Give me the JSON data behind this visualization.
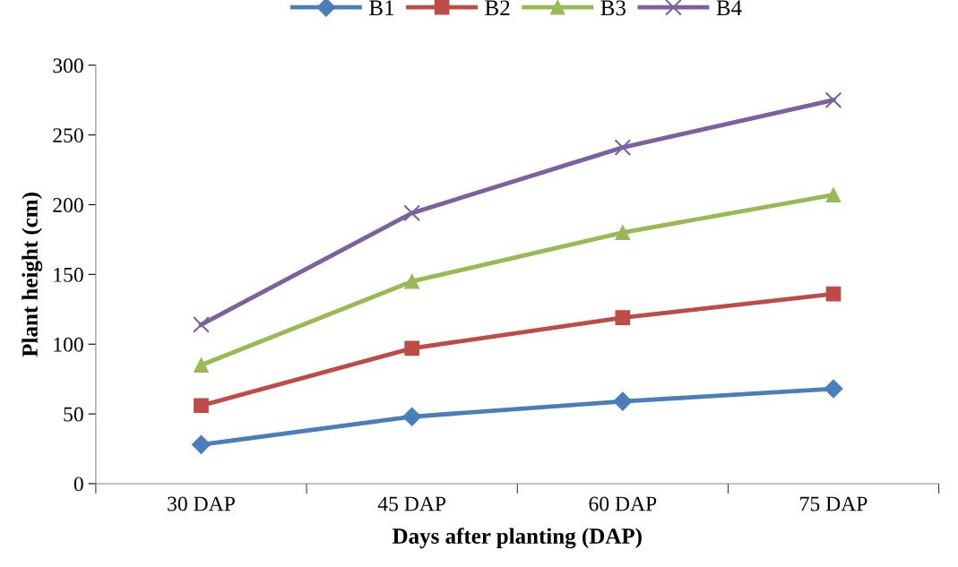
{
  "chart_data": {
    "type": "line",
    "xlabel": "Days after planting (DAP)",
    "ylabel": "Plant height (cm)",
    "categories": [
      "30 DAP",
      "45 DAP",
      "60 DAP",
      "75 DAP"
    ],
    "series": [
      {
        "name": "B1",
        "color": "#4a7ebb",
        "marker": "diamond",
        "values": [
          28,
          48,
          59,
          68
        ]
      },
      {
        "name": "B2",
        "color": "#be4b48",
        "marker": "square",
        "values": [
          56,
          97,
          119,
          136
        ]
      },
      {
        "name": "B3",
        "color": "#98b954",
        "marker": "triangle",
        "values": [
          85,
          145,
          180,
          207
        ]
      },
      {
        "name": "B4",
        "color": "#7d60a0",
        "marker": "cross",
        "values": [
          114,
          194,
          241,
          275
        ]
      }
    ],
    "ylim": [
      0,
      300
    ],
    "yticks": [
      0,
      50,
      100,
      150,
      200,
      250,
      300
    ],
    "grid": false,
    "legend": "top",
    "line_style": "solid"
  }
}
